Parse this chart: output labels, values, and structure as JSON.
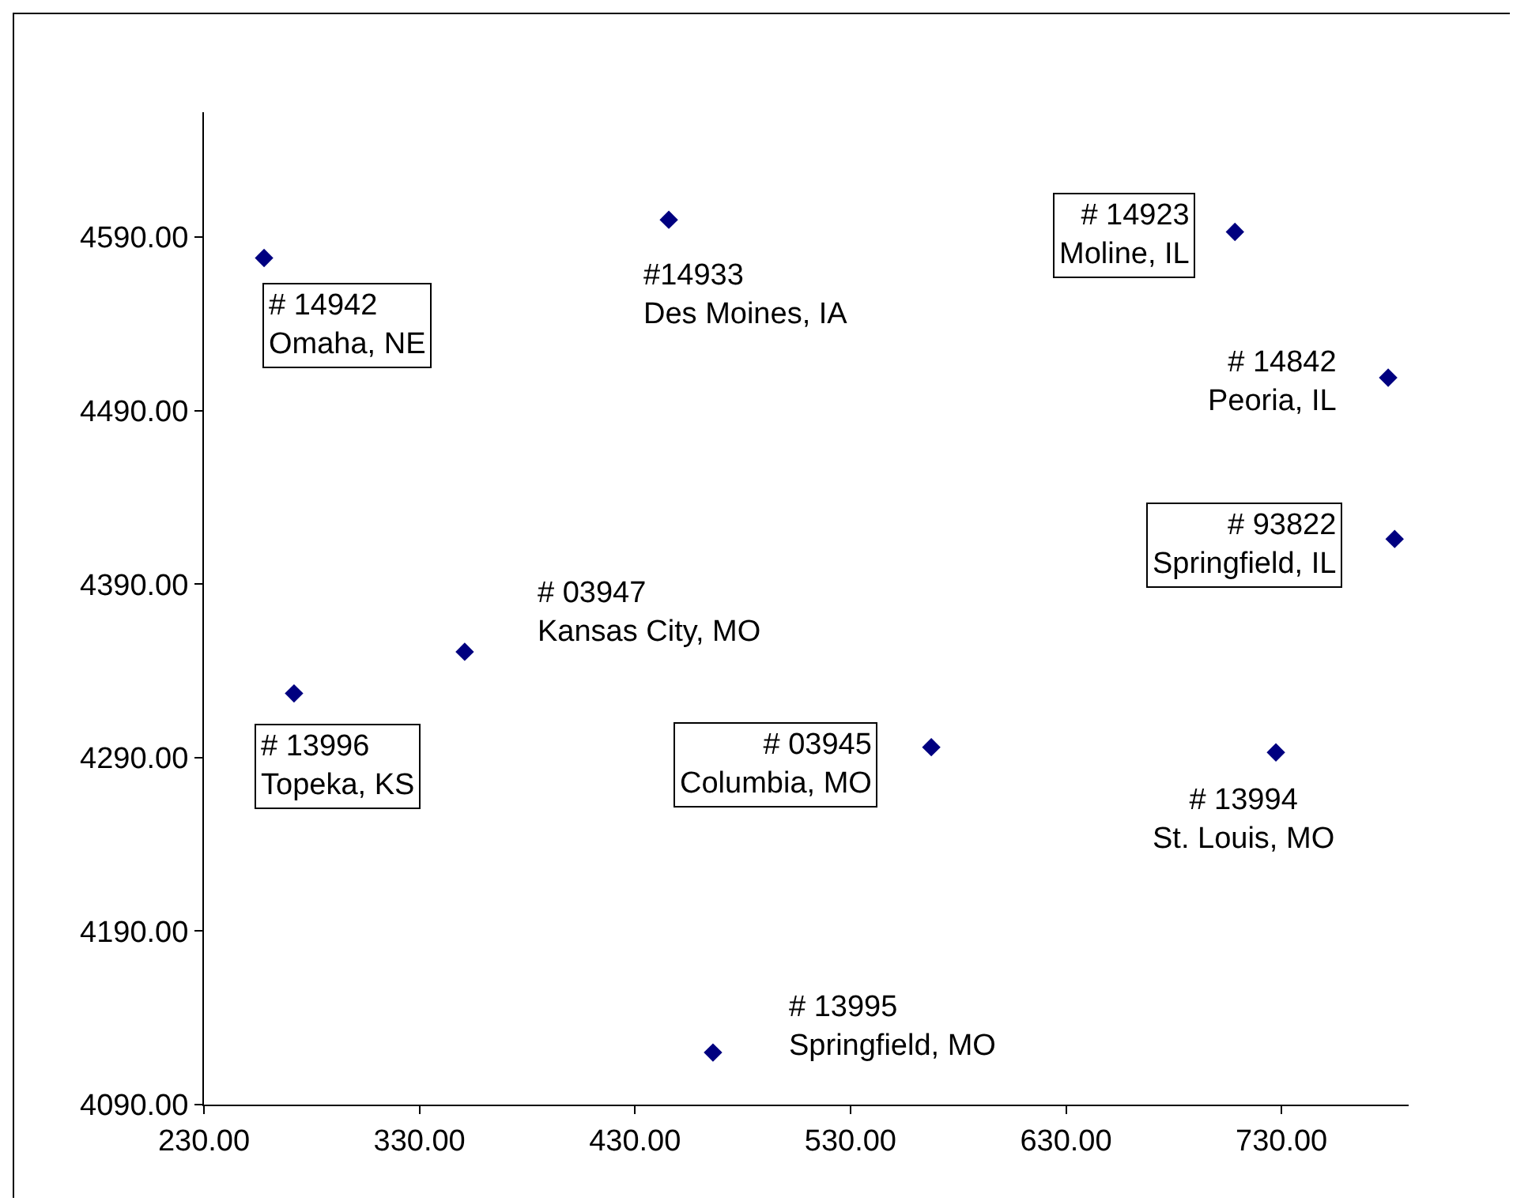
{
  "chart_data": {
    "type": "scatter",
    "marker": "diamond",
    "grid": false,
    "x": [
      257.9,
      445.7,
      708.4,
      779.5,
      782.5,
      351,
      271.8,
      567.5,
      727.4,
      466.2
    ],
    "series": [
      {
        "color": "#000080",
        "values": [
          4578,
          4600,
          4593,
          4509,
          4416,
          4351,
          4327,
          4296,
          4293,
          4120
        ]
      }
    ],
    "xlim": [
      230,
      789
    ],
    "ylim": [
      4090,
      4662
    ],
    "xticks": [
      {
        "value": 230,
        "label": "230.00"
      },
      {
        "value": 330,
        "label": "330.00"
      },
      {
        "value": 430,
        "label": "430.00"
      },
      {
        "value": 530,
        "label": "530.00"
      },
      {
        "value": 630,
        "label": "630.00"
      },
      {
        "value": 730,
        "label": "730.00"
      }
    ],
    "yticks": [
      {
        "value": 4090,
        "label": "4090.00"
      },
      {
        "value": 4190,
        "label": "4190.00"
      },
      {
        "value": 4290,
        "label": "4290.00"
      },
      {
        "value": 4390,
        "label": "4390.00"
      },
      {
        "value": 4490,
        "label": "4490.00"
      },
      {
        "value": 4590,
        "label": "4590.00"
      }
    ],
    "annotations": [
      {
        "text": "# 14942\nOmaha, NE",
        "x": 257.9,
        "y": 4578
      },
      {
        "text": "#14933\nDes Moines, IA",
        "x": 445.7,
        "y": 4600
      },
      {
        "text": "# 14923\nMoline, IL",
        "x": 708.4,
        "y": 4593
      },
      {
        "text": "# 14842\nPeoria, IL",
        "x": 779.5,
        "y": 4509
      },
      {
        "text": "# 93822\nSpringfield, IL",
        "x": 782.5,
        "y": 4416
      },
      {
        "text": "# 03947\nKansas City, MO",
        "x": 351,
        "y": 4351
      },
      {
        "text": "# 13996\nTopeka, KS",
        "x": 271.8,
        "y": 4327
      },
      {
        "text": "# 03945\nColumbia, MO",
        "x": 567.5,
        "y": 4296
      },
      {
        "text": "# 13994\nSt. Louis, MO",
        "x": 727.4,
        "y": 4293
      },
      {
        "text": "# 13995\nSpringfield, MO",
        "x": 466.2,
        "y": 4120
      }
    ]
  }
}
